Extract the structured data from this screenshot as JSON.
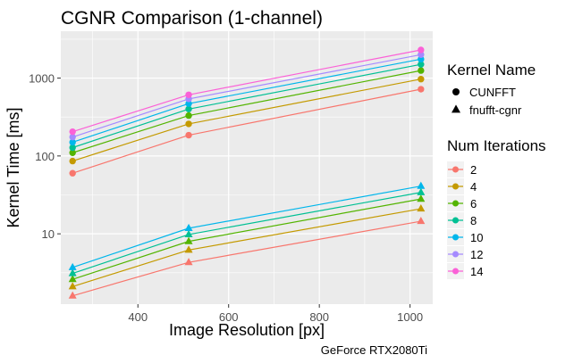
{
  "caption": "GeForce RTX2080Ti",
  "chart_data": {
    "type": "line",
    "title": "CGNR Comparison (1-channel)",
    "xlabel": "Image Resolution [px]",
    "ylabel": "Kernel Time [ms]",
    "x_scale": "linear",
    "y_scale": "log10",
    "xlim": [
      230,
      1050
    ],
    "ylim": [
      1.25,
      4000
    ],
    "x_ticks": [
      400,
      600,
      800,
      1000
    ],
    "x_tick_labels": [
      "400",
      "600",
      "800",
      "1000"
    ],
    "y_ticks": [
      10,
      100,
      1000
    ],
    "y_tick_labels": [
      "10",
      "100",
      "1000"
    ],
    "x": [
      256,
      512,
      1024
    ],
    "legend_kernel": {
      "title": "Kernel Name",
      "entries": [
        {
          "label": "CUNFFT",
          "shape": "circle"
        },
        {
          "label": "fnufft-cgnr",
          "shape": "triangle"
        }
      ]
    },
    "legend_iterations": {
      "title": "Num Iterations",
      "entries": [
        {
          "label": "2",
          "color": "#F8766D"
        },
        {
          "label": "4",
          "color": "#C49A00"
        },
        {
          "label": "6",
          "color": "#53B400"
        },
        {
          "label": "8",
          "color": "#00C094"
        },
        {
          "label": "10",
          "color": "#00B6EB"
        },
        {
          "label": "12",
          "color": "#A58AFF"
        },
        {
          "label": "14",
          "color": "#FB61D7"
        }
      ]
    },
    "series": [
      {
        "kernel": "CUNFFT",
        "iterations": "2",
        "color": "#F8766D",
        "values": [
          60,
          185,
          720
        ]
      },
      {
        "kernel": "CUNFFT",
        "iterations": "4",
        "color": "#C49A00",
        "values": [
          86,
          258,
          970
        ]
      },
      {
        "kernel": "CUNFFT",
        "iterations": "6",
        "color": "#53B400",
        "values": [
          110,
          330,
          1250
        ]
      },
      {
        "kernel": "CUNFFT",
        "iterations": "8",
        "color": "#00C094",
        "values": [
          128,
          400,
          1500
        ]
      },
      {
        "kernel": "CUNFFT",
        "iterations": "10",
        "color": "#00B6EB",
        "values": [
          150,
          470,
          1750
        ]
      },
      {
        "kernel": "CUNFFT",
        "iterations": "12",
        "color": "#A58AFF",
        "values": [
          175,
          540,
          2000
        ]
      },
      {
        "kernel": "CUNFFT",
        "iterations": "14",
        "color": "#FB61D7",
        "values": [
          205,
          610,
          2300
        ]
      },
      {
        "kernel": "fnufft-cgnr",
        "iterations": "2",
        "color": "#F8766D",
        "values": [
          1.6,
          4.3,
          14.5
        ]
      },
      {
        "kernel": "fnufft-cgnr",
        "iterations": "4",
        "color": "#C49A00",
        "values": [
          2.1,
          6.2,
          21
        ]
      },
      {
        "kernel": "fnufft-cgnr",
        "iterations": "6",
        "color": "#53B400",
        "values": [
          2.6,
          8.0,
          28
        ]
      },
      {
        "kernel": "fnufft-cgnr",
        "iterations": "8",
        "color": "#00C094",
        "values": [
          3.1,
          9.8,
          34
        ]
      },
      {
        "kernel": "fnufft-cgnr",
        "iterations": "10",
        "color": "#00B6EB",
        "values": [
          3.7,
          11.8,
          41
        ]
      }
    ]
  }
}
